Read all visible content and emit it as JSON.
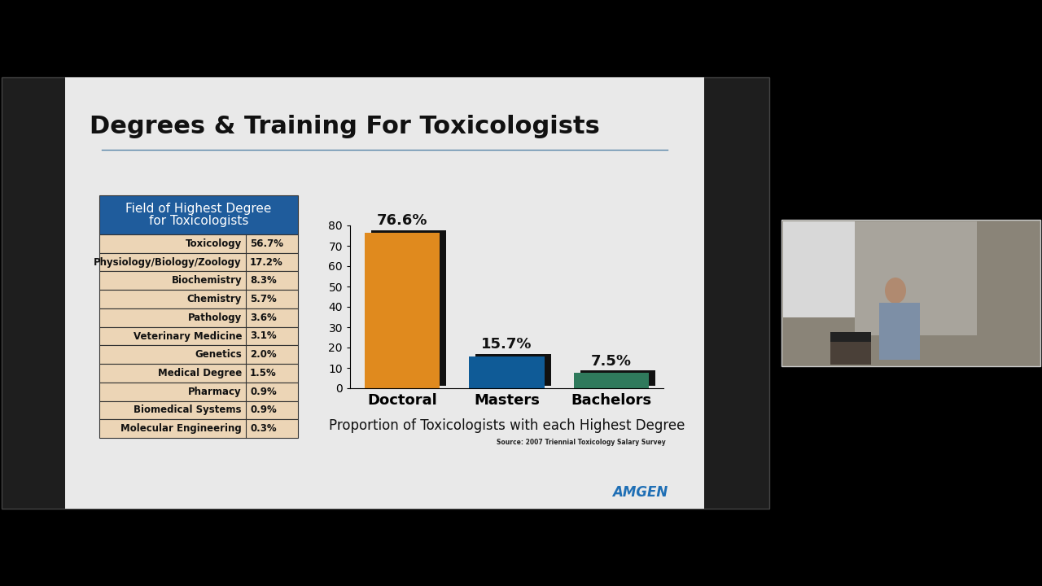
{
  "title": "Degrees & Training For Toxicologists",
  "table": {
    "header": "Field of Highest Degree\nfor Toxicologists",
    "rows": [
      [
        "Toxicology",
        "56.7%"
      ],
      [
        "Physiology/Biology/Zoology",
        "17.2%"
      ],
      [
        "Biochemistry",
        "8.3%"
      ],
      [
        "Chemistry",
        "5.7%"
      ],
      [
        "Pathology",
        "3.6%"
      ],
      [
        "Veterinary Medicine",
        "3.1%"
      ],
      [
        "Genetics",
        "2.0%"
      ],
      [
        "Medical Degree",
        "1.5%"
      ],
      [
        "Pharmacy",
        "0.9%"
      ],
      [
        "Biomedical Systems",
        "0.9%"
      ],
      [
        "Molecular Engineering",
        "0.3%"
      ]
    ]
  },
  "chart_data": {
    "type": "bar",
    "x_label": "Proportion of Toxicologists with each Highest Degree",
    "source": "Source: 2007 Triennial Toxicology Salary Survey",
    "categories": [
      "Doctoral",
      "Masters",
      "Bachelors"
    ],
    "values": [
      76.6,
      15.7,
      7.5
    ],
    "value_labels": [
      "76.6%",
      "15.7%",
      "7.5%"
    ],
    "colors": [
      "#e08a1e",
      "#0f5b97",
      "#2f7a5c"
    ],
    "ylim": [
      0,
      80
    ],
    "yticks": [
      0,
      10,
      20,
      30,
      40,
      50,
      60,
      70,
      80
    ],
    "grid": false,
    "data_labels": true
  },
  "logo": "AMGEN"
}
